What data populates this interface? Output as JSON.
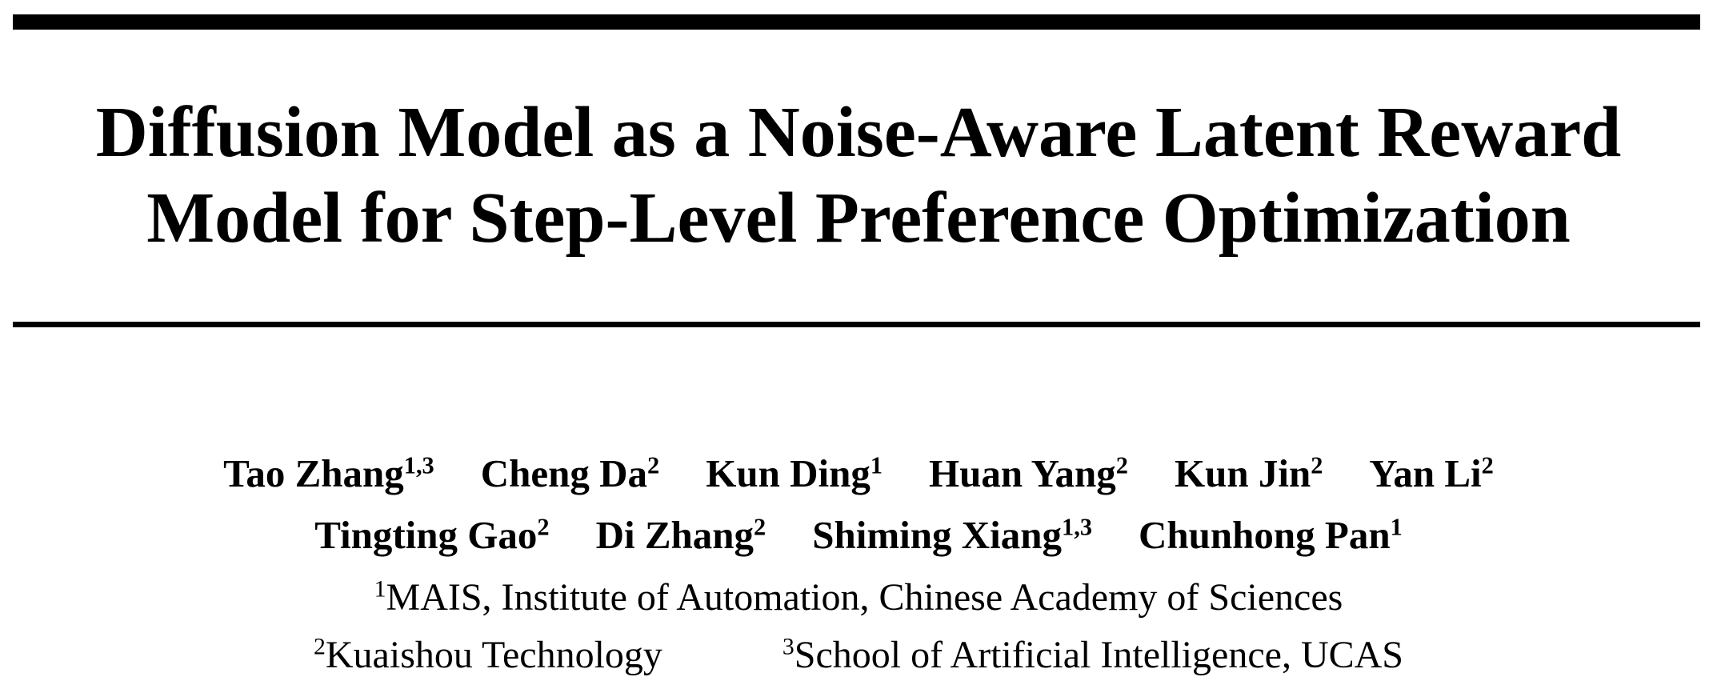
{
  "title": [
    "Diffusion Model as a Noise-Aware Latent Reward",
    "Model for Step-Level Preference Optimization"
  ],
  "authors": [
    [
      {
        "name": "Tao Zhang",
        "affil": "1,3"
      },
      {
        "name": "Cheng Da",
        "affil": "2"
      },
      {
        "name": "Kun Ding",
        "affil": "1"
      },
      {
        "name": "Huan Yang",
        "affil": "2"
      },
      {
        "name": "Kun Jin",
        "affil": "2"
      },
      {
        "name": "Yan Li",
        "affil": "2"
      }
    ],
    [
      {
        "name": "Tingting Gao",
        "affil": "2"
      },
      {
        "name": "Di Zhang",
        "affil": "2"
      },
      {
        "name": "Shiming Xiang",
        "affil": "1,3"
      },
      {
        "name": "Chunhong Pan",
        "affil": "1"
      }
    ]
  ],
  "affiliations": [
    [
      {
        "mark": "1",
        "text": "MAIS, Institute of Automation, Chinese Academy of Sciences"
      }
    ],
    [
      {
        "mark": "2",
        "text": "Kuaishou Technology"
      },
      {
        "mark": "3",
        "text": "School of Artificial Intelligence, UCAS"
      }
    ]
  ]
}
